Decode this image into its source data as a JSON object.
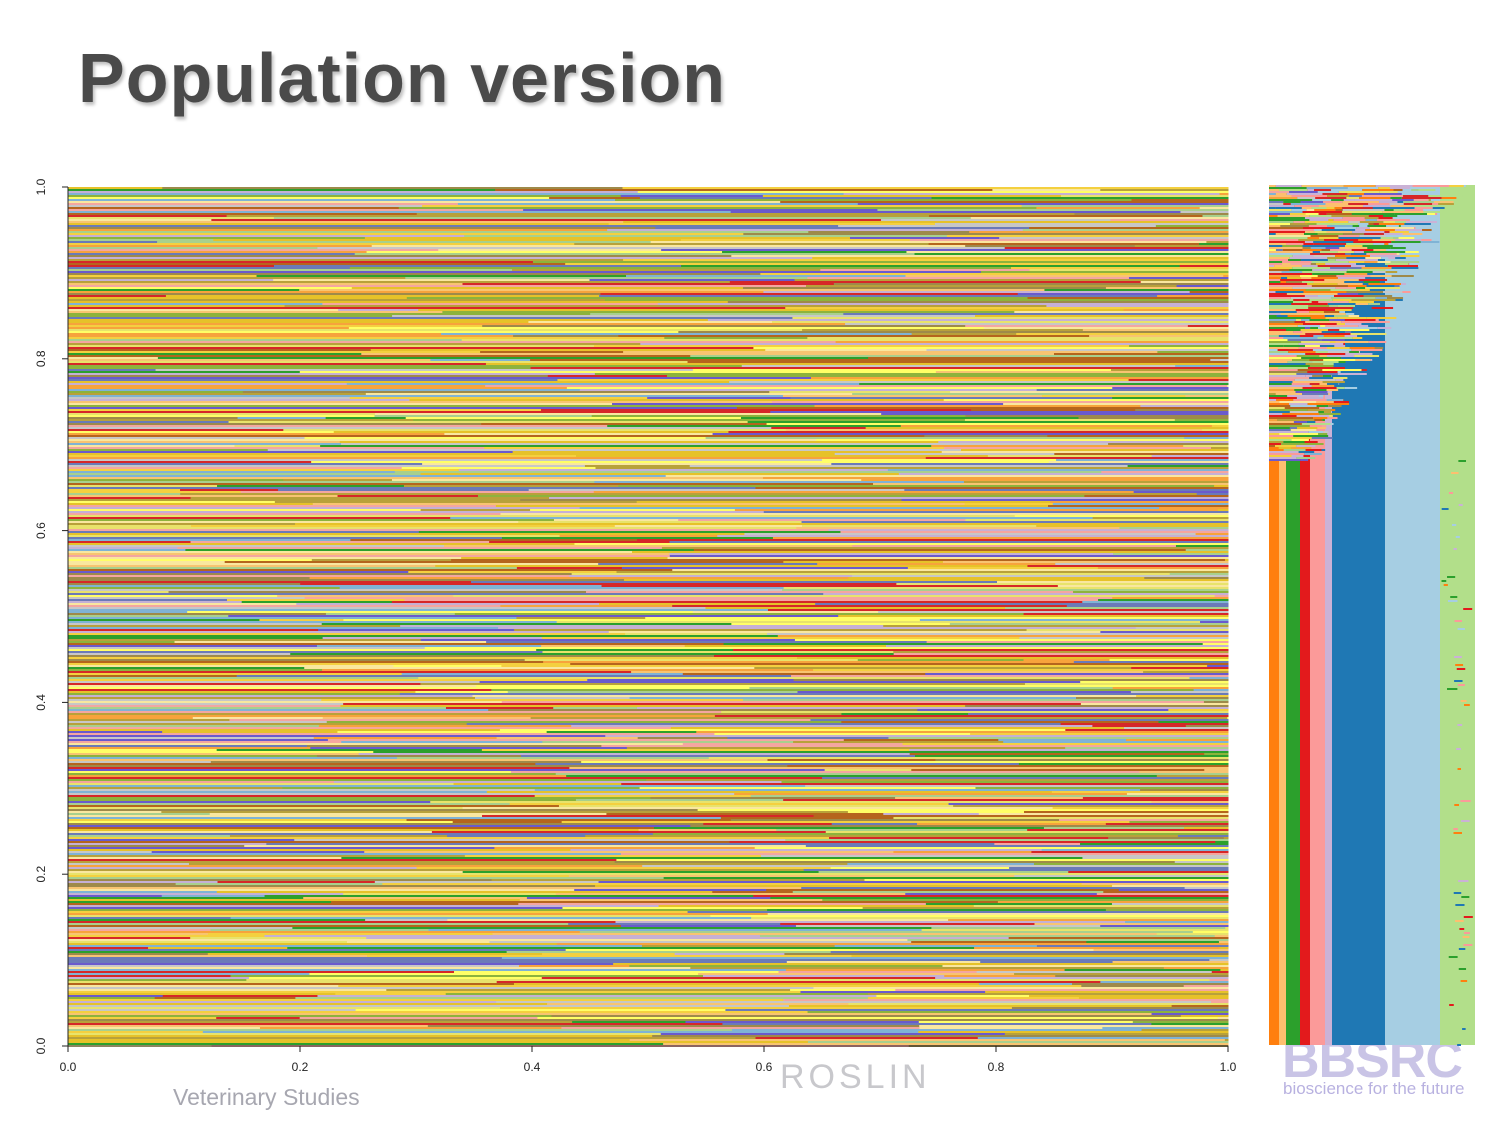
{
  "title": "Population version",
  "chart_data": {
    "type": "stripe",
    "xlim": [
      0,
      1
    ],
    "ylim": [
      0,
      1
    ],
    "xticks": [
      {
        "value": 0,
        "label": "0.0"
      },
      0.2,
      0.4,
      0.6,
      0.8,
      {
        "value": 1,
        "label": "1.0"
      }
    ],
    "yticks": [
      {
        "value": 0,
        "label": "0.0"
      },
      0.2,
      0.4,
      0.6,
      0.8,
      {
        "value": 1,
        "label": "1.0"
      }
    ],
    "palette": [
      "#e6c229",
      "#b8a13a",
      "#f4d03f",
      "#8db33c",
      "#f4a6a0",
      "#e8e36b",
      "#6b7ab8",
      "#a8d08d",
      "#f7a33c",
      "#c5b0d5",
      "#2ca02c",
      "#d62728",
      "#9e8a4a",
      "#7fb3d5",
      "#f9e79f",
      "#b5651d",
      "#f8c471",
      "#6a5acd",
      "#c7c7c7",
      "#ffff66"
    ],
    "panel_colors": [
      "#ff7f0e",
      "#fdbf6f",
      "#2ca02c",
      "#e31a1c",
      "#fb9a99",
      "#cab2d6",
      "#1f78b4",
      "#a6cee3",
      "#b2df8a"
    ]
  },
  "footer": {
    "left": "Veterinary Studies",
    "center": "ROSLIN",
    "right_logo": "BBSRC",
    "right_tagline": "bioscience for the future"
  }
}
